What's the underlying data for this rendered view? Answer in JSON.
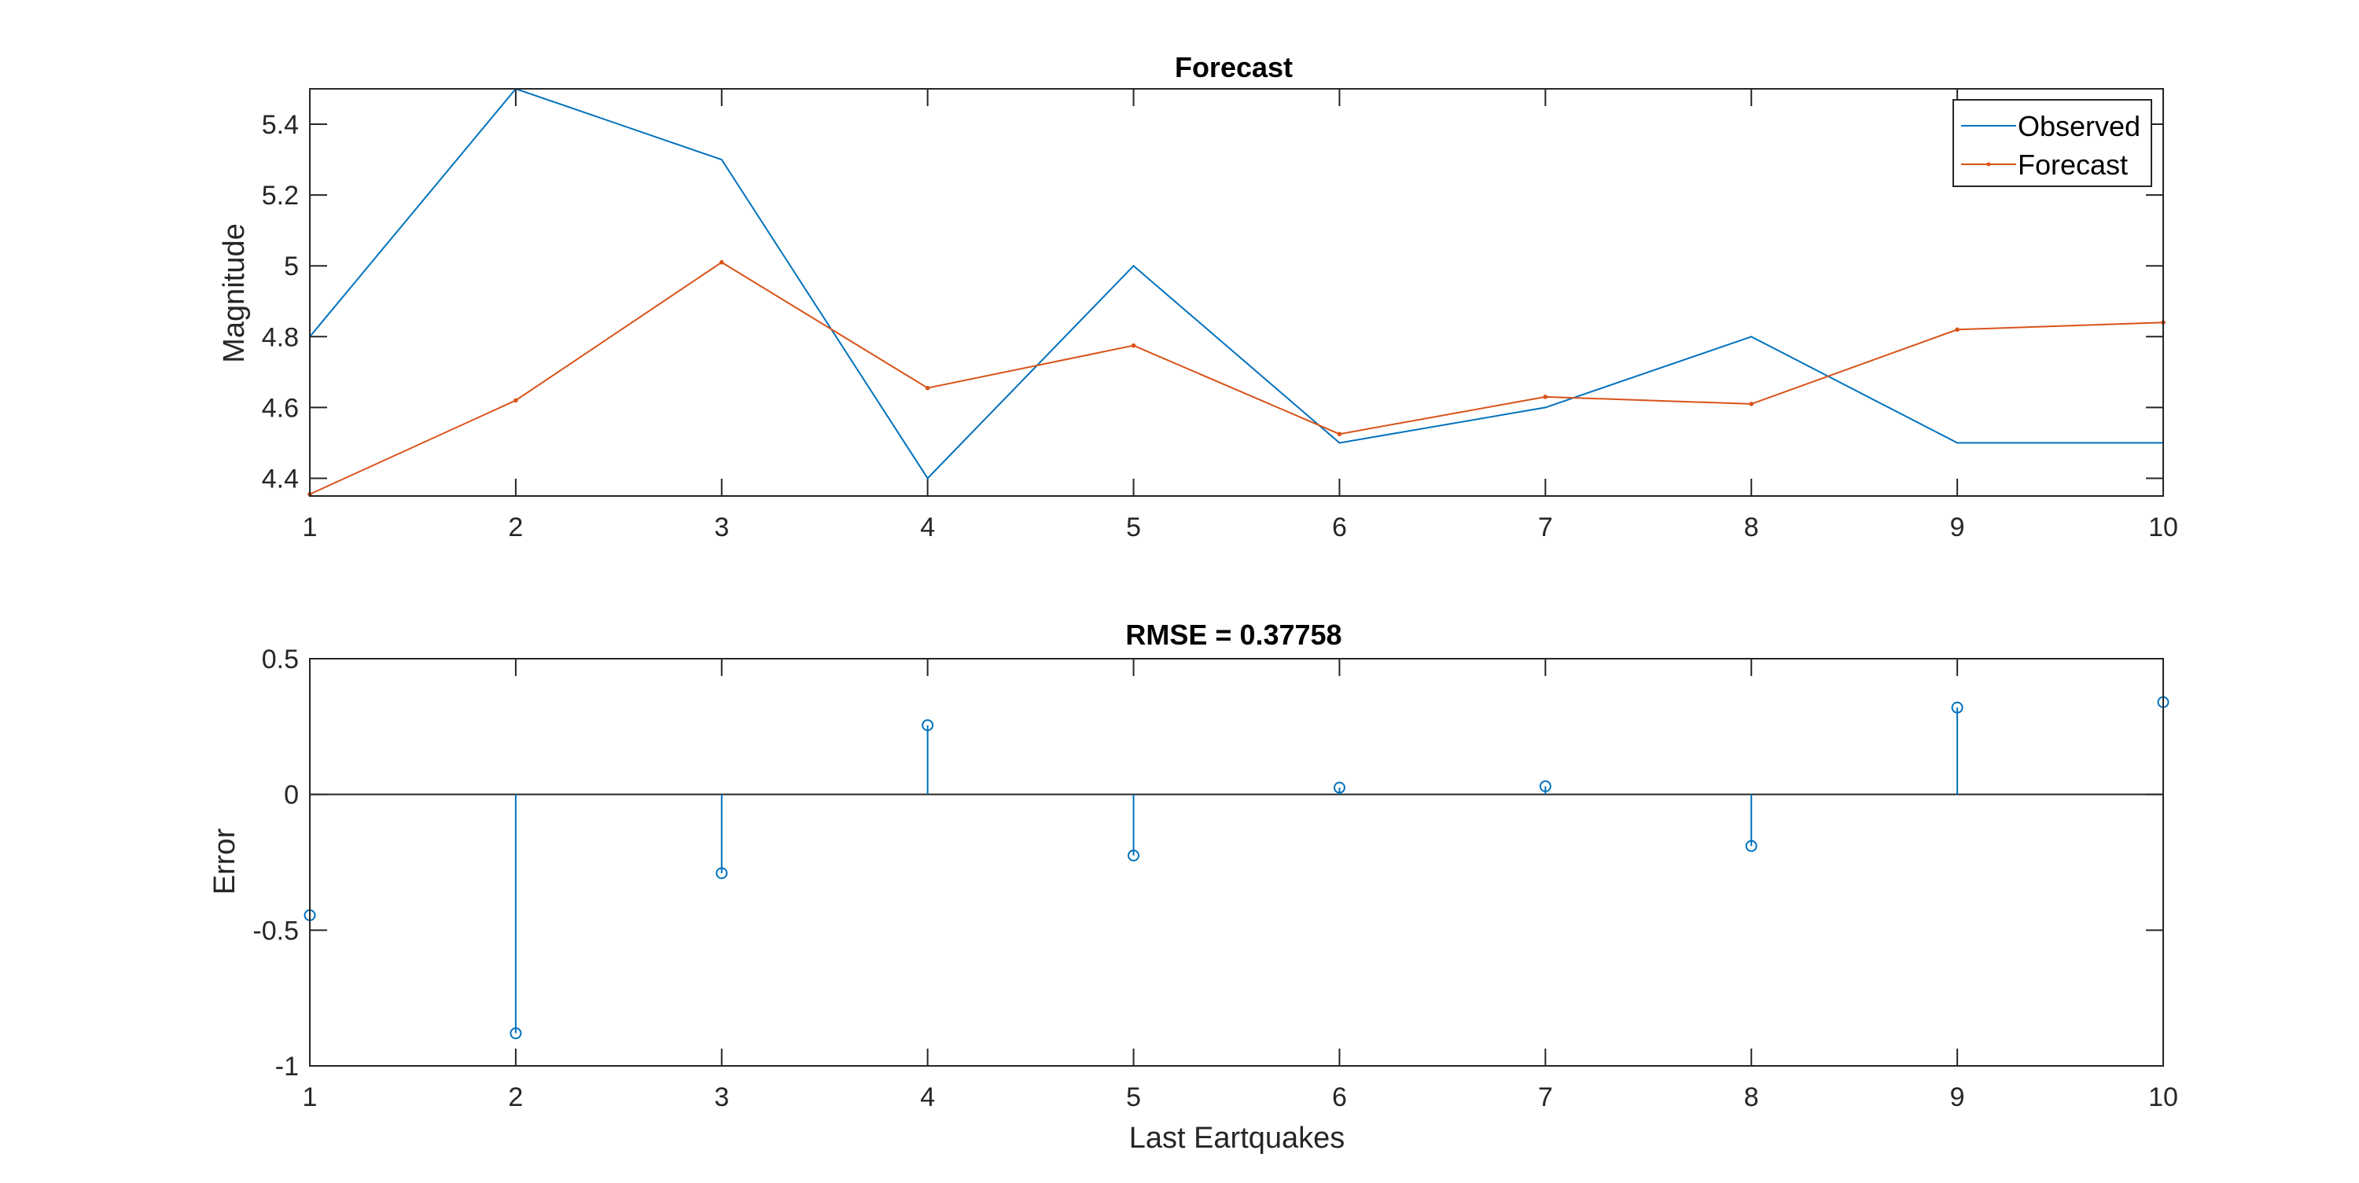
{
  "colors": {
    "observed": "#0072BD",
    "forecast": "#D95319",
    "error": "#0072BD",
    "axis": "#262626"
  },
  "chart_data": [
    {
      "type": "line",
      "title": "Forecast",
      "xlabel": "",
      "ylabel": "Magnitude",
      "x": [
        1,
        2,
        3,
        4,
        5,
        6,
        7,
        8,
        9,
        10
      ],
      "xlim": [
        1,
        10
      ],
      "ylim": [
        4.35,
        5.5
      ],
      "xticks": [
        1,
        2,
        3,
        4,
        5,
        6,
        7,
        8,
        9,
        10
      ],
      "yticks": [
        4.4,
        4.6,
        4.8,
        5,
        5.2,
        5.4
      ],
      "ytick_labels": [
        "4.4",
        "4.6",
        "4.8",
        "5",
        "5.2",
        "5.4"
      ],
      "grid": false,
      "legend_position": "top-right",
      "series": [
        {
          "name": "Observed",
          "marker": "none",
          "values": [
            4.8,
            5.5,
            5.3,
            4.4,
            5.0,
            4.5,
            4.6,
            4.8,
            4.5,
            4.5
          ]
        },
        {
          "name": "Forecast",
          "marker": "dot",
          "values": [
            4.355,
            4.62,
            5.01,
            4.655,
            4.775,
            4.525,
            4.63,
            4.61,
            4.82,
            4.84
          ]
        }
      ]
    },
    {
      "type": "stem",
      "title": "RMSE = 0.37758",
      "xlabel": "Last Eartquakes",
      "ylabel": "Error",
      "x": [
        1,
        2,
        3,
        4,
        5,
        6,
        7,
        8,
        9,
        10
      ],
      "xlim": [
        1,
        10
      ],
      "ylim": [
        -1,
        0.5
      ],
      "xticks": [
        1,
        2,
        3,
        4,
        5,
        6,
        7,
        8,
        9,
        10
      ],
      "yticks": [
        -1,
        -0.5,
        0,
        0.5
      ],
      "ytick_labels": [
        "-1",
        "-0.5",
        "0",
        "0.5"
      ],
      "baseline": 0,
      "grid": false,
      "series": [
        {
          "marker": "circle",
          "values": [
            -0.445,
            -0.88,
            -0.29,
            0.255,
            -0.225,
            0.025,
            0.03,
            -0.19,
            0.32,
            0.34
          ]
        }
      ]
    }
  ]
}
